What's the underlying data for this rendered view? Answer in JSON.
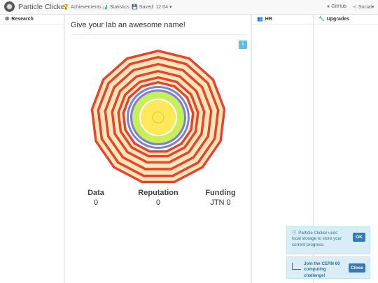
{
  "navbar": {
    "brand": "Particle Clicker",
    "achievements": "Achievements",
    "statistics": "Statistics",
    "saved": "Saved: 12:04",
    "github": "GitHub",
    "social": "Social"
  },
  "columns": {
    "research": "Research",
    "hr": "HR",
    "upgrades": "Upgrades"
  },
  "lab": {
    "name": "Give your lab an awesome name!",
    "info_label": "i"
  },
  "stats": {
    "data_label": "Data",
    "data_value": "0",
    "reputation_label": "Reputation",
    "reputation_value": "0",
    "funding_label": "Funding",
    "funding_value": "JTN 0"
  },
  "alerts": {
    "storage_text": "Particle Clicker uses local storage to store your current progress.",
    "storage_button": "OK",
    "cern_text": "Join the CERN 60 computing challenge!",
    "cern_button": "Close"
  },
  "colors": {
    "outer_red": "#e8412e",
    "cream": "#fde6b8",
    "blue": "#7b7fd6",
    "green": "#c8ef5a",
    "yellow": "#ffe85a",
    "info": "#5bc0de",
    "primary": "#337ab7"
  }
}
